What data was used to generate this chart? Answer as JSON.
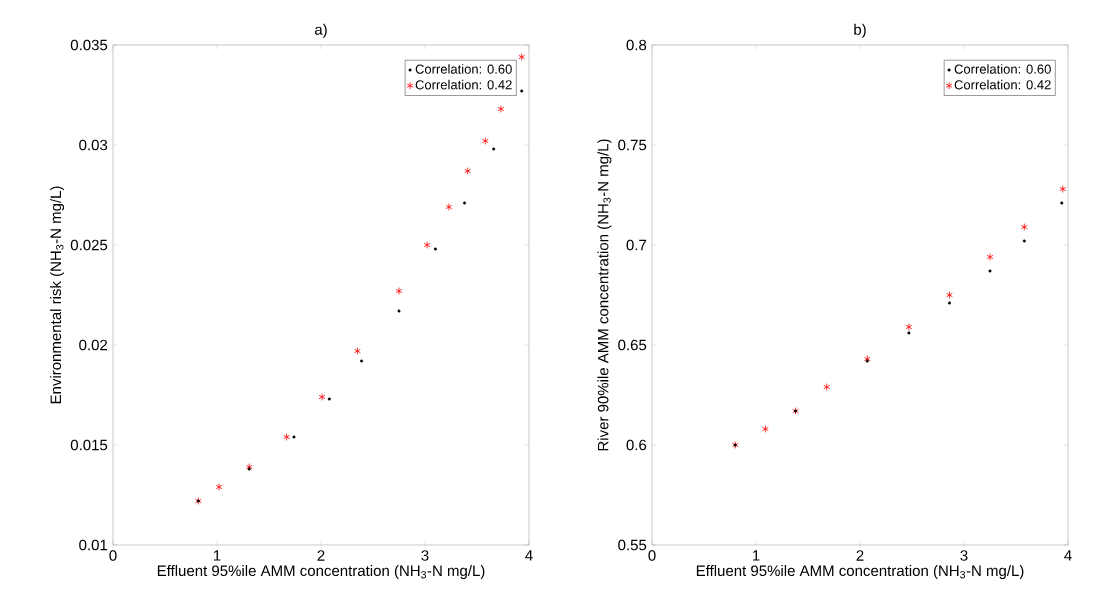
{
  "chart_data": [
    {
      "type": "scatter",
      "title": "a)",
      "xlabel": "Effluent 95%ile AMM concentration (NH$_{3}$-N mg/L)",
      "ylabel": "Environmental risk (NH$_{3}$-N mg/L)",
      "xlim": [
        0,
        4
      ],
      "ylim": [
        0.01,
        0.035
      ],
      "xticks": [
        0,
        1,
        2,
        3,
        4
      ],
      "yticks": [
        0.01,
        0.015,
        0.02,
        0.025,
        0.03,
        0.035
      ],
      "grid": false,
      "legend": "top right",
      "series": [
        {
          "name": "Correlation: 0.60",
          "color": "#000000",
          "marker": "circle",
          "x": [
            0.82,
            1.31,
            1.74,
            2.08,
            2.39,
            2.75,
            3.1,
            3.38,
            3.66,
            3.93
          ],
          "values": [
            0.0122,
            0.0138,
            0.0154,
            0.0173,
            0.0192,
            0.0217,
            0.0248,
            0.0271,
            0.0298,
            0.0327
          ]
        },
        {
          "name": "Correlation: 0.42",
          "color": "#ff0000",
          "marker": "cross",
          "x": [
            0.82,
            1.02,
            1.31,
            1.67,
            2.01,
            2.35,
            2.75,
            3.02,
            3.23,
            3.41,
            3.58,
            3.73,
            3.93
          ],
          "values": [
            0.0122,
            0.0129,
            0.0139,
            0.0154,
            0.0174,
            0.0197,
            0.0227,
            0.025,
            0.0269,
            0.0287,
            0.0302,
            0.0318,
            0.0344
          ]
        }
      ]
    },
    {
      "type": "scatter",
      "title": "b)",
      "xlabel": "Effluent 95%ile AMM concentration (NH$_{3}$-N mg/L)",
      "ylabel": "River 90%ile AMM concentration (NH$_{3}$-N mg/L)",
      "xlim": [
        0,
        4
      ],
      "ylim": [
        0.55,
        0.8
      ],
      "xticks": [
        0,
        1,
        2,
        3,
        4
      ],
      "yticks": [
        0.55,
        0.6,
        0.65,
        0.7,
        0.75,
        0.8
      ],
      "grid": false,
      "legend": "top right",
      "series": [
        {
          "name": "Correlation: 0.60",
          "color": "#000000",
          "marker": "circle",
          "x": [
            0.8,
            1.38,
            2.07,
            2.47,
            2.86,
            3.25,
            3.58,
            3.94
          ],
          "values": [
            0.6,
            0.617,
            0.642,
            0.656,
            0.671,
            0.687,
            0.702,
            0.721
          ]
        },
        {
          "name": "Correlation: 0.42",
          "color": "#ff0000",
          "marker": "cross",
          "x": [
            0.8,
            1.09,
            1.38,
            1.68,
            2.07,
            2.47,
            2.86,
            3.25,
            3.58,
            3.95
          ],
          "values": [
            0.6,
            0.608,
            0.617,
            0.629,
            0.643,
            0.659,
            0.675,
            0.694,
            0.709,
            0.728
          ]
        }
      ]
    }
  ]
}
